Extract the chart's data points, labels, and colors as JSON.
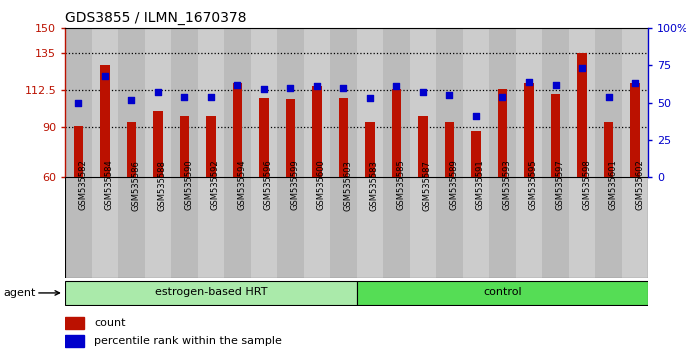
{
  "title": "GDS3855 / ILMN_1670378",
  "samples": [
    "GSM535582",
    "GSM535584",
    "GSM535586",
    "GSM535588",
    "GSM535590",
    "GSM535592",
    "GSM535594",
    "GSM535596",
    "GSM535599",
    "GSM535600",
    "GSM535603",
    "GSM535583",
    "GSM535585",
    "GSM535587",
    "GSM535589",
    "GSM535591",
    "GSM535593",
    "GSM535595",
    "GSM535597",
    "GSM535598",
    "GSM535601",
    "GSM535602"
  ],
  "counts": [
    91,
    128,
    93,
    100,
    97,
    97,
    117,
    108,
    107,
    115,
    108,
    93,
    113,
    97,
    93,
    88,
    113,
    117,
    110,
    135,
    93,
    117
  ],
  "percentiles": [
    50,
    68,
    52,
    57,
    54,
    54,
    62,
    59,
    60,
    61,
    60,
    53,
    61,
    57,
    55,
    41,
    54,
    64,
    62,
    73,
    54,
    63
  ],
  "group_labels": [
    "estrogen-based HRT",
    "control"
  ],
  "group_sizes": [
    11,
    11
  ],
  "ylim_left": [
    60,
    150
  ],
  "ylim_right": [
    0,
    100
  ],
  "yticks_left": [
    60,
    90,
    112.5,
    135,
    150
  ],
  "yticks_right": [
    0,
    25,
    50,
    75,
    100
  ],
  "ytick_labels_left": [
    "60",
    "90",
    "112.5",
    "135",
    "150"
  ],
  "ytick_labels_right": [
    "0",
    "25",
    "50",
    "75",
    "100%"
  ],
  "hlines": [
    90,
    112.5,
    135
  ],
  "bar_color": "#BB1100",
  "dot_color": "#0000CC",
  "plot_bg_color": "#C8C8C8",
  "col_bg_even": "#CCCCCC",
  "col_bg_odd": "#BBBBBB",
  "group1_color": "#AAEAAA",
  "group2_color": "#55DD55",
  "agent_label": "agent",
  "legend_count_label": "count",
  "legend_pct_label": "percentile rank within the sample"
}
